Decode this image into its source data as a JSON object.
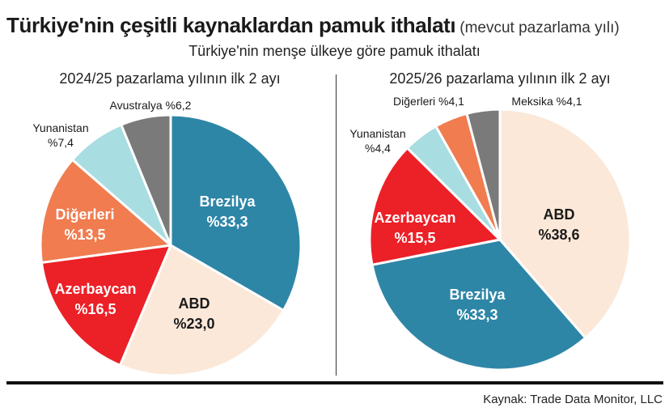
{
  "title": "Türkiye'nin çeşitli kaynaklardan pamuk ithalatı",
  "title_note": "(mevcut pazarlama yılı)",
  "subtitle": "Türkiye'nin menşe ülkeye göre pamuk ithalatı",
  "source": "Kaynak: Trade Data Monitor, LLC",
  "chart_data": [
    {
      "type": "pie",
      "title": "2024/25 pazarlama yılının ilk 2 ayı",
      "slices": [
        {
          "label": "Brezilya",
          "value": 33.3,
          "display": "%33,3",
          "color": "#2e86a7",
          "label_color": "#ffffff"
        },
        {
          "label": "ABD",
          "value": 23.0,
          "display": "%23,0",
          "color": "#fbe8d8",
          "label_color": "#1a1a1a"
        },
        {
          "label": "Azerbaycan",
          "value": 16.5,
          "display": "%16,5",
          "color": "#ec2027",
          "label_color": "#ffffff"
        },
        {
          "label": "Diğerleri",
          "value": 13.5,
          "display": "%13,5",
          "color": "#f07c4f",
          "label_color": "#ffffff"
        },
        {
          "label": "Yunanistan",
          "value": 7.4,
          "display": "%7,4",
          "color": "#a8dde1",
          "label_color": "#1a1a1a"
        },
        {
          "label": "Avustralya",
          "value": 6.2,
          "display": "%6,2",
          "color": "#7a7a7a",
          "label_color": "#1a1a1a"
        }
      ]
    },
    {
      "type": "pie",
      "title": "2025/26 pazarlama yılının ilk 2 ayı",
      "slices": [
        {
          "label": "ABD",
          "value": 38.6,
          "display": "%38,6",
          "color": "#fbe8d8",
          "label_color": "#1a1a1a"
        },
        {
          "label": "Brezilya",
          "value": 33.3,
          "display": "%33,3",
          "color": "#2e86a7",
          "label_color": "#ffffff"
        },
        {
          "label": "Azerbaycan",
          "value": 15.5,
          "display": "%15,5",
          "color": "#ec2027",
          "label_color": "#ffffff"
        },
        {
          "label": "Yunanistan",
          "value": 4.4,
          "display": "%4,4",
          "color": "#a8dde1",
          "label_color": "#1a1a1a"
        },
        {
          "label": "Diğerleri",
          "value": 4.1,
          "display": "%4,1",
          "color": "#f07c4f",
          "label_color": "#1a1a1a"
        },
        {
          "label": "Meksika",
          "value": 4.1,
          "display": "%4,1",
          "color": "#7a7a7a",
          "label_color": "#1a1a1a"
        }
      ]
    }
  ]
}
